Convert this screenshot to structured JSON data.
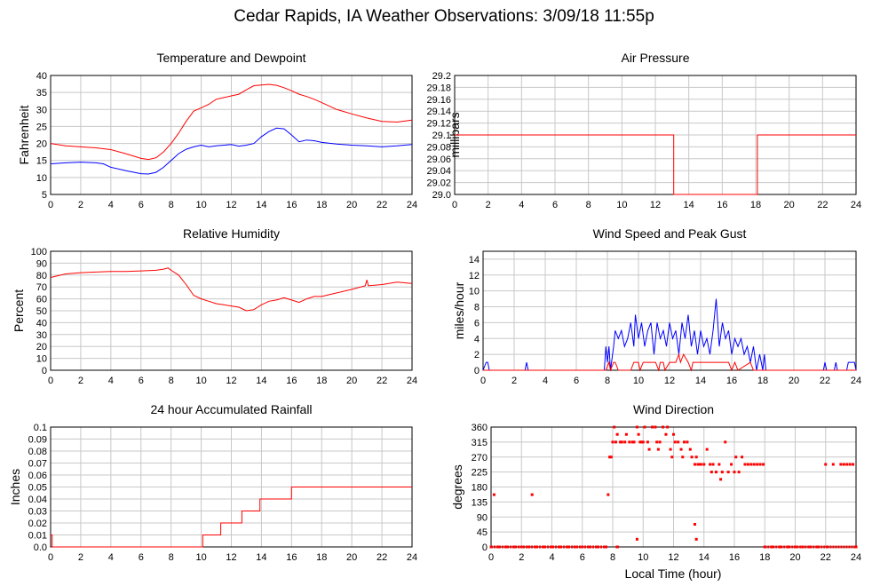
{
  "title": "Cedar Rapids, IA Weather Observations: 3/09/18 11:55p",
  "x_label": "Local Time (hour)",
  "chart_data": [
    {
      "id": "temp",
      "type": "line",
      "title": "Temperature and Dewpoint",
      "ylabel": "Fahrenheit",
      "xlim": [
        0,
        24
      ],
      "ylim": [
        5,
        40
      ],
      "xticks": [
        0,
        2,
        4,
        6,
        8,
        10,
        12,
        14,
        16,
        18,
        20,
        22,
        24
      ],
      "yticks": [
        5,
        10,
        15,
        20,
        25,
        30,
        35,
        40
      ],
      "ytick_labels": [
        "5",
        "10",
        "15",
        "20",
        "25",
        "30",
        "35",
        "40"
      ],
      "grid": true,
      "series": [
        {
          "color": "#ff0000",
          "x": [
            0,
            1,
            2,
            3,
            4,
            5,
            6,
            6.5,
            7,
            7.5,
            8,
            8.5,
            9,
            9.5,
            10,
            10.5,
            11,
            11.5,
            12,
            12.5,
            13,
            13.5,
            14,
            14.5,
            15,
            15.5,
            16,
            16.5,
            17,
            17.5,
            18,
            19,
            20,
            21,
            22,
            23,
            24
          ],
          "y": [
            20,
            19.3,
            19,
            18.7,
            18.2,
            17,
            15.6,
            15.3,
            15.8,
            17.5,
            20,
            23,
            26.5,
            29.5,
            30.5,
            31.5,
            33,
            33.5,
            34,
            34.5,
            35.8,
            37,
            37.2,
            37.4,
            37.1,
            36.4,
            35.5,
            34.5,
            33.8,
            33,
            32,
            30,
            28.7,
            27.5,
            26.5,
            26.3,
            26.9
          ]
        },
        {
          "color": "#0000ff",
          "x": [
            0,
            1,
            2,
            3,
            3.5,
            4,
            5,
            6,
            6.5,
            7,
            7.5,
            8,
            8.5,
            9,
            9.5,
            10,
            10.5,
            11,
            11.5,
            12,
            12.5,
            13,
            13.5,
            14,
            14.5,
            15,
            15.5,
            16,
            16.5,
            17,
            17.5,
            18,
            19,
            20,
            21,
            22,
            23,
            24
          ],
          "y": [
            14,
            14.3,
            14.5,
            14.3,
            14,
            13,
            12,
            11.1,
            11,
            11.5,
            13,
            15,
            17,
            18.3,
            19,
            19.5,
            19,
            19.3,
            19.5,
            19.7,
            19.2,
            19.5,
            20,
            22,
            23.5,
            24.5,
            24.3,
            22.5,
            20.5,
            21,
            20.8,
            20.3,
            19.8,
            19.5,
            19.3,
            19,
            19.3,
            19.7
          ]
        }
      ]
    },
    {
      "id": "pressure",
      "type": "line",
      "title": "Air Pressure",
      "ylabel": "millibars",
      "xlim": [
        0,
        24
      ],
      "ylim": [
        29.0,
        29.2
      ],
      "xticks": [
        0,
        2,
        4,
        6,
        8,
        10,
        12,
        14,
        16,
        18,
        20,
        22,
        24
      ],
      "yticks": [
        29.0,
        29.02,
        29.04,
        29.06,
        29.08,
        29.1,
        29.12,
        29.14,
        29.16,
        29.18,
        29.2
      ],
      "ytick_labels": [
        "29.0",
        "29.02",
        "29.04",
        "29.06",
        "29.08",
        "29.1",
        "29.12",
        "29.14",
        "29.16",
        "29.18",
        "29.2"
      ],
      "grid": true,
      "series": [
        {
          "color": "#ff0000",
          "x": [
            0,
            13.1,
            13.1,
            18.1,
            18.1,
            24
          ],
          "y": [
            29.1,
            29.1,
            29.0,
            29.0,
            29.1,
            29.1
          ]
        }
      ]
    },
    {
      "id": "rh",
      "type": "line",
      "title": "Relative Humidity",
      "ylabel": "Percent",
      "xlim": [
        0,
        24
      ],
      "ylim": [
        0,
        100
      ],
      "xticks": [
        0,
        2,
        4,
        6,
        8,
        10,
        12,
        14,
        16,
        18,
        20,
        22,
        24
      ],
      "yticks": [
        0,
        10,
        20,
        30,
        40,
        50,
        60,
        70,
        80,
        90,
        100
      ],
      "ytick_labels": [
        "0",
        "10",
        "20",
        "30",
        "40",
        "50",
        "60",
        "70",
        "80",
        "90",
        "100"
      ],
      "grid": true,
      "series": [
        {
          "color": "#ff0000",
          "x": [
            0,
            1,
            2,
            3,
            4,
            5,
            6,
            7,
            7.5,
            7.8,
            8,
            8.5,
            9,
            9.5,
            10,
            10.5,
            11,
            11.5,
            12,
            12.5,
            13,
            13.5,
            14,
            14.5,
            15,
            15.5,
            16,
            16.5,
            17,
            17.5,
            18,
            19,
            20,
            20.9,
            21,
            21.1,
            22,
            23,
            24
          ],
          "y": [
            78,
            81,
            82,
            82.5,
            83,
            83,
            83.5,
            84,
            85,
            86,
            84,
            80,
            72,
            63,
            60,
            58,
            56,
            55,
            54,
            53,
            50,
            51,
            55,
            58,
            59,
            61,
            59,
            57,
            60,
            62,
            62,
            65,
            68,
            71,
            76,
            71,
            72,
            74,
            73
          ]
        }
      ]
    },
    {
      "id": "wind",
      "type": "line",
      "title": "Wind Speed and Peak Gust",
      "ylabel": "miles/hour",
      "xlim": [
        0,
        24
      ],
      "ylim": [
        0,
        15
      ],
      "xticks": [
        0,
        2,
        4,
        6,
        8,
        10,
        12,
        14,
        16,
        18,
        20,
        22,
        24
      ],
      "yticks": [
        0,
        2,
        4,
        6,
        8,
        10,
        12,
        14
      ],
      "ytick_labels": [
        "0",
        "2",
        "4",
        "6",
        "8",
        "10",
        "12",
        "14"
      ],
      "grid": true,
      "series": [
        {
          "color": "#0000ff",
          "x": [
            0,
            0.2,
            0.3,
            0.4,
            2.7,
            2.8,
            2.9,
            7.8,
            7.9,
            8.0,
            8.1,
            8.2,
            8.4,
            8.5,
            8.7,
            8.9,
            9.1,
            9.3,
            9.5,
            9.7,
            9.8,
            10.0,
            10.2,
            10.4,
            10.6,
            10.8,
            11.0,
            11.2,
            11.4,
            11.6,
            11.8,
            12.0,
            12.2,
            12.4,
            12.6,
            12.8,
            13.0,
            13.2,
            13.4,
            13.6,
            13.8,
            14.0,
            14.2,
            14.4,
            14.6,
            14.8,
            15.0,
            15.2,
            15.4,
            15.6,
            15.8,
            16.0,
            16.2,
            16.4,
            16.6,
            16.8,
            17.0,
            17.2,
            17.4,
            17.6,
            17.8,
            18.0,
            18.1,
            18.2,
            21.9,
            22.0,
            22.1,
            22.6,
            22.7,
            22.8,
            23.4,
            23.5,
            23.6,
            23.9,
            24
          ],
          "y": [
            0,
            1,
            1,
            0,
            0,
            1,
            0,
            0,
            3,
            1,
            3,
            0,
            3,
            5,
            4,
            5,
            3,
            4,
            6,
            3,
            7,
            4,
            6,
            3,
            5,
            6,
            2,
            6,
            4,
            5,
            3,
            6,
            4,
            5,
            2,
            6,
            4,
            7,
            3,
            5,
            2,
            5,
            3,
            4,
            2,
            5,
            9,
            3,
            6,
            4,
            5,
            2,
            4,
            3,
            4,
            2,
            3,
            1,
            3,
            0,
            2,
            0,
            2,
            0,
            0,
            1,
            0,
            0,
            1,
            0,
            0,
            1,
            1,
            1,
            0
          ]
        },
        {
          "color": "#ff0000",
          "x": [
            0,
            7.9,
            8.1,
            8.2,
            8.4,
            8.5,
            8.7,
            9.5,
            9.7,
            9.8,
            10.0,
            10.1,
            10.3,
            11.1,
            11.3,
            11.4,
            11.6,
            11.7,
            12.0,
            12.4,
            12.6,
            12.7,
            12.9,
            13.2,
            13.4,
            13.5,
            13.8,
            14.6,
            14.8,
            15.8,
            16.0,
            16.2,
            16.4,
            17.2,
            17.4,
            24
          ],
          "y": [
            0,
            0,
            1,
            0,
            1,
            1,
            0,
            0,
            1,
            1,
            1,
            0,
            1,
            1,
            0,
            1,
            1,
            0,
            1,
            1,
            2,
            1,
            2,
            1,
            0,
            1,
            1,
            1,
            1,
            1,
            0,
            1,
            0,
            1,
            0,
            0
          ]
        }
      ]
    },
    {
      "id": "rain",
      "type": "line",
      "title": "24 hour Accumulated Rainfall",
      "ylabel": "Inches",
      "xlim": [
        0,
        24
      ],
      "ylim": [
        0,
        0.1
      ],
      "xticks": [
        0,
        2,
        4,
        6,
        8,
        10,
        12,
        14,
        16,
        18,
        20,
        22,
        24
      ],
      "yticks": [
        0,
        0.01,
        0.02,
        0.03,
        0.04,
        0.05,
        0.06,
        0.07,
        0.08,
        0.09,
        0.1
      ],
      "ytick_labels": [
        "0.0",
        "0.01",
        "0.02",
        "0.03",
        "0.04",
        "0.05",
        "0.06",
        "0.07",
        "0.08",
        "0.09",
        "0.1"
      ],
      "grid": true,
      "series": [
        {
          "color": "#ff0000",
          "x": [
            0,
            0.1,
            0.1,
            10.1,
            10.1,
            11.3,
            11.3,
            12.7,
            12.7,
            13.9,
            13.9,
            16,
            16,
            24
          ],
          "y": [
            0.01,
            0.01,
            0,
            0,
            0.01,
            0.01,
            0.02,
            0.02,
            0.03,
            0.03,
            0.04,
            0.04,
            0.05,
            0.05
          ]
        }
      ]
    },
    {
      "id": "dir",
      "type": "scatter",
      "title": "Wind Direction",
      "ylabel": "degrees",
      "xlim": [
        0,
        24
      ],
      "ylim": [
        0,
        360
      ],
      "xticks": [
        0,
        2,
        4,
        6,
        8,
        10,
        12,
        14,
        16,
        18,
        20,
        22,
        24
      ],
      "yticks": [
        0,
        45,
        90,
        135,
        180,
        225,
        270,
        315,
        360
      ],
      "ytick_labels": [
        "0",
        "45",
        "90",
        "135",
        "180",
        "225",
        "270",
        "315",
        "360"
      ],
      "grid": true,
      "series": [
        {
          "color": "#ff0000",
          "x": [
            0.2,
            2.7,
            7.7,
            7.8,
            7.9,
            8.0,
            8.1,
            8.2,
            8.3,
            8.5,
            8.6,
            8.8,
            8.9,
            9.1,
            9.3,
            9.4,
            9.6,
            9.7,
            9.8,
            9.9,
            10.0,
            10.1,
            10.3,
            10.4,
            10.6,
            10.8,
            10.9,
            11.0,
            11.1,
            11.3,
            11.5,
            11.6,
            11.8,
            11.9,
            12.0,
            12.1,
            12.3,
            12.5,
            12.6,
            12.7,
            12.9,
            13.1,
            13.2,
            13.4,
            13.5,
            13.6,
            13.7,
            13.8,
            14.0,
            14.2,
            14.4,
            14.5,
            14.6,
            14.8,
            15.0,
            15.1,
            15.2,
            15.4,
            15.6,
            15.8,
            16.0,
            16.1,
            16.3,
            16.5,
            16.7,
            16.9,
            17.1,
            17.3,
            17.5,
            17.7,
            17.9,
            22.0,
            22.5,
            23.0,
            23.2,
            23.4,
            23.6,
            23.8,
            9.6,
            13.4,
            13.5
          ],
          "y": [
            157,
            157,
            157,
            270,
            270,
            315,
            360,
            315,
            338,
            315,
            315,
            315,
            338,
            315,
            315,
            315,
            360,
            338,
            315,
            315,
            315,
            360,
            315,
            293,
            360,
            360,
            315,
            293,
            315,
            360,
            338,
            360,
            293,
            270,
            338,
            315,
            315,
            293,
            270,
            315,
            315,
            293,
            270,
            248,
            270,
            248,
            248,
            248,
            248,
            293,
            248,
            225,
            248,
            225,
            248,
            203,
            225,
            315,
            225,
            248,
            225,
            270,
            225,
            270,
            248,
            248,
            248,
            248,
            248,
            248,
            248,
            248,
            248,
            248,
            248,
            248,
            248,
            248,
            23,
            68,
            23
          ]
        },
        {
          "color": "#ff0000",
          "x": [
            0,
            0.5,
            1,
            1.5,
            2,
            2.5,
            3,
            3.5,
            4,
            4.5,
            5,
            5.5,
            6,
            6.5,
            7,
            7.5,
            8.3,
            18,
            18.5,
            19,
            19.5,
            20,
            20.5,
            21,
            21.5,
            22.1,
            24
          ],
          "y": [
            0,
            0,
            0,
            0,
            0,
            0,
            0,
            0,
            0,
            0,
            0,
            0,
            0,
            0,
            0,
            0,
            0,
            0,
            0,
            0,
            0,
            0,
            0,
            0,
            0,
            0,
            0
          ]
        }
      ]
    }
  ]
}
